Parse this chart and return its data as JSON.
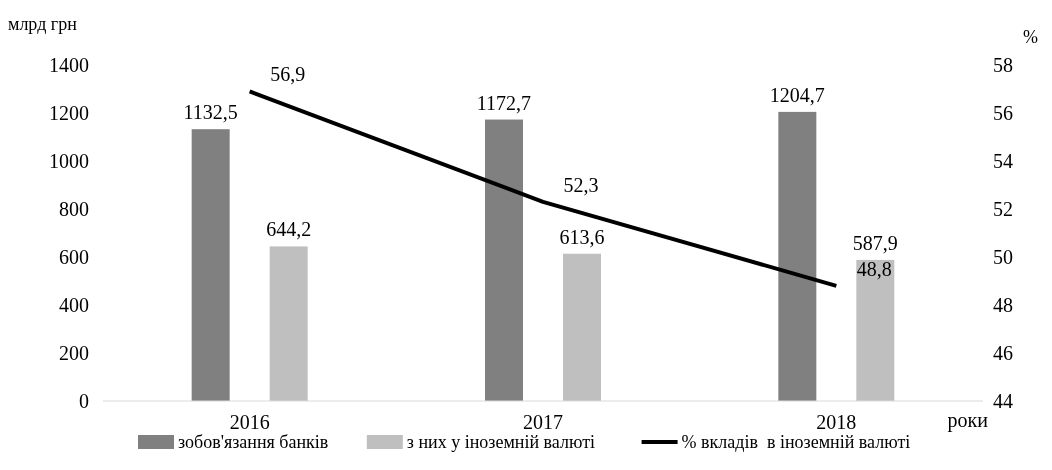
{
  "chart_data": {
    "type": "bar",
    "categories": [
      "2016",
      "2017",
      "2018"
    ],
    "xlabel": "роки",
    "ylabel": "млрд грн",
    "y2label": "%",
    "series": [
      {
        "name": "зобов'язання банків",
        "color": "#808080",
        "values": [
          1132.5,
          1172.7,
          1204.7
        ],
        "value_labels": [
          "1132,5",
          "1172,7",
          "1204,7"
        ]
      },
      {
        "name": "з них у іноземній валюті",
        "color": "#bfbfbf",
        "values": [
          644.2,
          613.6,
          587.9
        ],
        "value_labels": [
          "644,2",
          "613,6",
          "587,9"
        ]
      },
      {
        "name": "% вкладів  в іноземній валюті",
        "type": "line",
        "axis": "y2",
        "color": "#000000",
        "values": [
          56.9,
          52.3,
          48.8
        ],
        "value_labels": [
          "56,9",
          "52,3",
          "48,8"
        ]
      }
    ],
    "ylim": [
      0,
      1400
    ],
    "yticks": [
      0,
      200,
      400,
      600,
      800,
      1000,
      1200,
      1400
    ],
    "y2lim": [
      44,
      58
    ],
    "y2ticks": [
      44,
      46,
      48,
      50,
      52,
      54,
      56,
      58
    ],
    "grid": false,
    "legend": "bottom",
    "marker": "none",
    "line_style": "solid"
  }
}
